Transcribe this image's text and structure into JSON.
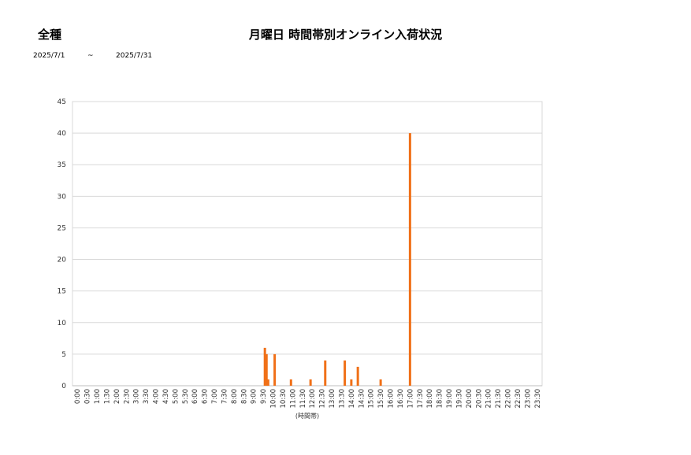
{
  "header": {
    "category": "全種",
    "title": "月曜日 時間帯別オンライン入荷状況",
    "date_from": "2025/7/1",
    "date_sep": "~",
    "date_to": "2025/7/31"
  },
  "chart_data": {
    "type": "bar",
    "title": "月曜日 時間帯別オンライン入荷状況",
    "xlabel": "(時間帯)",
    "ylabel": "",
    "ylim": [
      0,
      45
    ],
    "yticks": [
      0,
      5,
      10,
      15,
      20,
      25,
      30,
      35,
      40,
      45
    ],
    "grid": true,
    "color": "#f07018",
    "categories": [
      "0:00",
      "0:30",
      "1:00",
      "1:30",
      "2:00",
      "2:30",
      "3:00",
      "3:30",
      "4:00",
      "4:30",
      "5:00",
      "5:30",
      "6:00",
      "6:30",
      "7:00",
      "7:30",
      "8:00",
      "8:30",
      "9:00",
      "9:30",
      "10:00",
      "10:30",
      "11:00",
      "11:30",
      "12:00",
      "12:30",
      "13:00",
      "13:30",
      "14:00",
      "14:30",
      "15:00",
      "15:30",
      "16:00",
      "16:30",
      "17:00",
      "17:30",
      "18:00",
      "18:30",
      "19:00",
      "19:30",
      "20:00",
      "20:30",
      "21:00",
      "21:30",
      "22:00",
      "22:30",
      "23:00",
      "23:30"
    ],
    "bars": [
      {
        "time": "9:50",
        "value": 6
      },
      {
        "time": "9:55",
        "value": 5
      },
      {
        "time": "10:00",
        "value": 1
      },
      {
        "time": "10:20",
        "value": 5
      },
      {
        "time": "11:10",
        "value": 1
      },
      {
        "time": "12:10",
        "value": 1
      },
      {
        "time": "12:55",
        "value": 4
      },
      {
        "time": "13:55",
        "value": 4
      },
      {
        "time": "14:15",
        "value": 1
      },
      {
        "time": "14:35",
        "value": 3
      },
      {
        "time": "15:45",
        "value": 1
      },
      {
        "time": "17:15",
        "value": 40
      }
    ]
  }
}
